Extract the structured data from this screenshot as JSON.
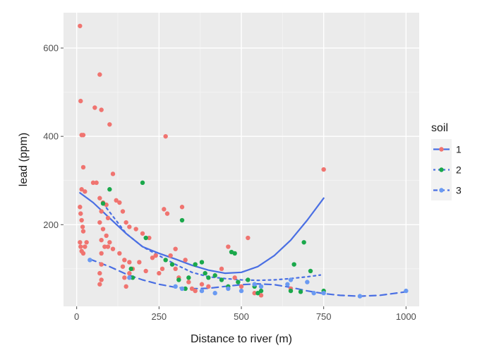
{
  "chart_data": {
    "type": "scatter",
    "title": "",
    "xlabel": "Distance to river (m)",
    "ylabel": "lead (ppm)",
    "xlim": [
      -40,
      1040
    ],
    "ylim": [
      15,
      680
    ],
    "xticks": [
      0,
      250,
      500,
      750,
      1000
    ],
    "xtick_labels": [
      "0",
      "250",
      "500",
      "750",
      "1000"
    ],
    "yticks": [
      200,
      400,
      600
    ],
    "ytick_labels": [
      "200",
      "400",
      "600"
    ],
    "grid": true,
    "panel_background": "#ebebeb",
    "legend": {
      "title": "soil",
      "position": "right"
    },
    "series": [
      {
        "name": "1",
        "point_color": "#f07470",
        "line_color": "#4a6fe3",
        "line_style": "solid",
        "points": [
          [
            10,
            650
          ],
          [
            12,
            480
          ],
          [
            15,
            403
          ],
          [
            20,
            403
          ],
          [
            20,
            330
          ],
          [
            15,
            280
          ],
          [
            25,
            275
          ],
          [
            10,
            240
          ],
          [
            12,
            225
          ],
          [
            15,
            210
          ],
          [
            18,
            195
          ],
          [
            20,
            185
          ],
          [
            10,
            160
          ],
          [
            12,
            150
          ],
          [
            15,
            140
          ],
          [
            20,
            135
          ],
          [
            25,
            150
          ],
          [
            30,
            160
          ],
          [
            55,
            465
          ],
          [
            75,
            460
          ],
          [
            70,
            540
          ],
          [
            100,
            427
          ],
          [
            110,
            315
          ],
          [
            50,
            295
          ],
          [
            60,
            295
          ],
          [
            70,
            260
          ],
          [
            80,
            250
          ],
          [
            90,
            245
          ],
          [
            75,
            230
          ],
          [
            95,
            215
          ],
          [
            120,
            255
          ],
          [
            130,
            250
          ],
          [
            140,
            230
          ],
          [
            150,
            205
          ],
          [
            160,
            195
          ],
          [
            70,
            205
          ],
          [
            80,
            190
          ],
          [
            90,
            175
          ],
          [
            100,
            160
          ],
          [
            75,
            165
          ],
          [
            85,
            150
          ],
          [
            75,
            135
          ],
          [
            95,
            150
          ],
          [
            110,
            145
          ],
          [
            130,
            135
          ],
          [
            145,
            120
          ],
          [
            160,
            115
          ],
          [
            140,
            105
          ],
          [
            75,
            110
          ],
          [
            70,
            90
          ],
          [
            75,
            75
          ],
          [
            70,
            65
          ],
          [
            160,
            90
          ],
          [
            145,
            80
          ],
          [
            150,
            60
          ],
          [
            180,
            190
          ],
          [
            200,
            180
          ],
          [
            220,
            170
          ],
          [
            230,
            125
          ],
          [
            210,
            95
          ],
          [
            170,
            100
          ],
          [
            190,
            115
          ],
          [
            240,
            130
          ],
          [
            260,
            100
          ],
          [
            270,
            400
          ],
          [
            265,
            235
          ],
          [
            275,
            225
          ],
          [
            285,
            130
          ],
          [
            250,
            90
          ],
          [
            300,
            145
          ],
          [
            320,
            240
          ],
          [
            330,
            120
          ],
          [
            300,
            100
          ],
          [
            310,
            80
          ],
          [
            340,
            70
          ],
          [
            350,
            55
          ],
          [
            360,
            50
          ],
          [
            380,
            65
          ],
          [
            400,
            60
          ],
          [
            440,
            100
          ],
          [
            460,
            150
          ],
          [
            480,
            80
          ],
          [
            500,
            60
          ],
          [
            520,
            170
          ],
          [
            540,
            45
          ],
          [
            560,
            40
          ],
          [
            650,
            55
          ],
          [
            750,
            325
          ]
        ],
        "smooth": [
          [
            10,
            272
          ],
          [
            50,
            250
          ],
          [
            100,
            215
          ],
          [
            150,
            180
          ],
          [
            200,
            150
          ],
          [
            250,
            135
          ],
          [
            300,
            122
          ],
          [
            350,
            108
          ],
          [
            400,
            97
          ],
          [
            450,
            90
          ],
          [
            500,
            92
          ],
          [
            550,
            105
          ],
          [
            600,
            130
          ],
          [
            650,
            165
          ],
          [
            700,
            210
          ],
          [
            750,
            260
          ]
        ]
      },
      {
        "name": "2",
        "point_color": "#1aa84b",
        "line_color": "#4a6fe3",
        "line_style": "dotted",
        "points": [
          [
            80,
            248
          ],
          [
            100,
            280
          ],
          [
            165,
            100
          ],
          [
            170,
            80
          ],
          [
            200,
            295
          ],
          [
            210,
            170
          ],
          [
            270,
            120
          ],
          [
            290,
            110
          ],
          [
            320,
            210
          ],
          [
            310,
            75
          ],
          [
            330,
            55
          ],
          [
            340,
            80
          ],
          [
            360,
            110
          ],
          [
            380,
            115
          ],
          [
            390,
            90
          ],
          [
            400,
            80
          ],
          [
            420,
            85
          ],
          [
            440,
            75
          ],
          [
            460,
            60
          ],
          [
            470,
            138
          ],
          [
            480,
            135
          ],
          [
            490,
            70
          ],
          [
            520,
            75
          ],
          [
            540,
            60
          ],
          [
            550,
            45
          ],
          [
            560,
            50
          ],
          [
            660,
            110
          ],
          [
            690,
            160
          ],
          [
            710,
            95
          ],
          [
            750,
            50
          ],
          [
            650,
            50
          ],
          [
            680,
            48
          ]
        ],
        "smooth": [
          [
            80,
            248
          ],
          [
            150,
            180
          ],
          [
            200,
            150
          ],
          [
            250,
            130
          ],
          [
            300,
            110
          ],
          [
            350,
            92
          ],
          [
            400,
            82
          ],
          [
            450,
            78
          ],
          [
            500,
            75
          ],
          [
            550,
            74
          ],
          [
            600,
            75
          ],
          [
            650,
            78
          ],
          [
            700,
            82
          ],
          [
            740,
            86
          ]
        ]
      },
      {
        "name": "3",
        "point_color": "#6a9af2",
        "line_color": "#4a6fe3",
        "line_style": "dashed",
        "points": [
          [
            40,
            120
          ],
          [
            160,
            80
          ],
          [
            300,
            60
          ],
          [
            320,
            55
          ],
          [
            380,
            50
          ],
          [
            420,
            45
          ],
          [
            460,
            55
          ],
          [
            500,
            50
          ],
          [
            540,
            65
          ],
          [
            560,
            60
          ],
          [
            640,
            65
          ],
          [
            650,
            75
          ],
          [
            700,
            70
          ],
          [
            720,
            45
          ],
          [
            750,
            45
          ],
          [
            860,
            38
          ],
          [
            1000,
            50
          ]
        ],
        "smooth": [
          [
            40,
            122
          ],
          [
            100,
            105
          ],
          [
            150,
            88
          ],
          [
            200,
            75
          ],
          [
            250,
            65
          ],
          [
            300,
            58
          ],
          [
            350,
            55
          ],
          [
            400,
            56
          ],
          [
            450,
            60
          ],
          [
            500,
            64
          ],
          [
            550,
            66
          ],
          [
            600,
            64
          ],
          [
            650,
            58
          ],
          [
            700,
            50
          ],
          [
            750,
            44
          ],
          [
            800,
            40
          ],
          [
            860,
            38
          ],
          [
            920,
            40
          ],
          [
            1000,
            48
          ]
        ]
      }
    ]
  }
}
